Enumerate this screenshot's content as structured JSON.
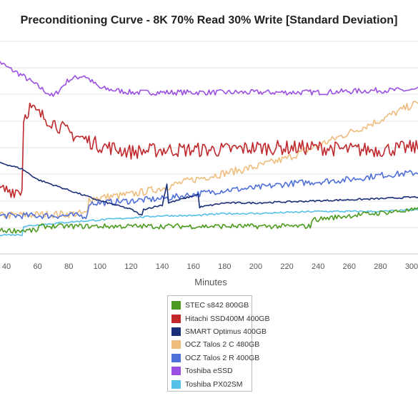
{
  "chart_data": {
    "type": "line",
    "title": "Preconditioning Curve - 8K 70% Read 30% Write [Standard Deviation]",
    "xlabel": "Minutes",
    "ylabel": "",
    "x_ticks": [
      40,
      60,
      80,
      100,
      120,
      140,
      160,
      180,
      200,
      220,
      240,
      260,
      280,
      300
    ],
    "xlim": [
      31,
      310
    ],
    "grid": true,
    "legend_position": "bottom-center",
    "series": [
      {
        "name": "STEC s842 800GB",
        "color": "#4c9a1f",
        "points": [
          [
            31,
            11
          ],
          [
            60,
            11
          ],
          [
            61,
            13
          ],
          [
            235,
            13
          ],
          [
            236,
            16
          ],
          [
            260,
            18
          ],
          [
            290,
            20
          ],
          [
            310,
            21
          ]
        ],
        "noise": 1.2
      },
      {
        "name": "Hitachi SSD400M 400GB",
        "color": "#c0282c",
        "points": [
          [
            31,
            30
          ],
          [
            50,
            30
          ],
          [
            51,
            64
          ],
          [
            55,
            69
          ],
          [
            60,
            66
          ],
          [
            70,
            62
          ],
          [
            80,
            57
          ],
          [
            90,
            54
          ],
          [
            100,
            51
          ],
          [
            120,
            48
          ],
          [
            140,
            49
          ],
          [
            160,
            49
          ],
          [
            180,
            49
          ],
          [
            200,
            50
          ],
          [
            220,
            50
          ],
          [
            240,
            50
          ],
          [
            260,
            49
          ],
          [
            280,
            49
          ],
          [
            300,
            50
          ],
          [
            310,
            50
          ]
        ],
        "noise": 3.5
      },
      {
        "name": "SMART Optimus 400GB",
        "color": "#1a2f78",
        "points": [
          [
            31,
            44
          ],
          [
            50,
            40
          ],
          [
            60,
            35
          ],
          [
            80,
            30
          ],
          [
            100,
            25
          ],
          [
            120,
            21
          ],
          [
            127,
            18
          ],
          [
            128,
            21
          ],
          [
            140,
            23
          ],
          [
            143,
            33
          ],
          [
            144,
            24
          ],
          [
            163,
            28
          ],
          [
            164,
            22
          ],
          [
            180,
            24
          ],
          [
            200,
            24
          ],
          [
            240,
            25
          ],
          [
            280,
            26
          ],
          [
            310,
            27
          ]
        ],
        "noise": 0.4
      },
      {
        "name": "OCZ Talos 2 C 480GB",
        "color": "#eebd7d",
        "points": [
          [
            31,
            18
          ],
          [
            92,
            19
          ],
          [
            93,
            26
          ],
          [
            120,
            28
          ],
          [
            140,
            31
          ],
          [
            160,
            35
          ],
          [
            180,
            38
          ],
          [
            200,
            41
          ],
          [
            220,
            45
          ],
          [
            240,
            51
          ],
          [
            260,
            57
          ],
          [
            280,
            63
          ],
          [
            300,
            70
          ],
          [
            310,
            72
          ]
        ],
        "noise": 1.8
      },
      {
        "name": "OCZ Talos 2 R 400GB",
        "color": "#4f6fd9",
        "points": [
          [
            31,
            18
          ],
          [
            92,
            18
          ],
          [
            93,
            24
          ],
          [
            100,
            24
          ],
          [
            120,
            25
          ],
          [
            140,
            26
          ],
          [
            160,
            28
          ],
          [
            180,
            30
          ],
          [
            200,
            31
          ],
          [
            220,
            33
          ],
          [
            240,
            34
          ],
          [
            260,
            35
          ],
          [
            280,
            37
          ],
          [
            300,
            38
          ],
          [
            310,
            39
          ]
        ],
        "noise": 1.5
      },
      {
        "name": "Toshiba eSSD",
        "color": "#9b4fe3",
        "points": [
          [
            31,
            93
          ],
          [
            40,
            88
          ],
          [
            50,
            84
          ],
          [
            60,
            79
          ],
          [
            70,
            74
          ],
          [
            80,
            82
          ],
          [
            90,
            84
          ],
          [
            100,
            78
          ],
          [
            120,
            76
          ],
          [
            140,
            76
          ],
          [
            160,
            76
          ],
          [
            180,
            76
          ],
          [
            200,
            76
          ],
          [
            240,
            76
          ],
          [
            280,
            77
          ],
          [
            300,
            77
          ],
          [
            310,
            78
          ]
        ],
        "noise": 1.3
      },
      {
        "name": "Toshiba PX02SM",
        "color": "#56c0e8",
        "points": [
          [
            31,
            9
          ],
          [
            50,
            9
          ],
          [
            51,
            13
          ],
          [
            80,
            15
          ],
          [
            100,
            16
          ],
          [
            120,
            17
          ],
          [
            140,
            18
          ],
          [
            160,
            18
          ],
          [
            180,
            19
          ],
          [
            200,
            19
          ],
          [
            240,
            20
          ],
          [
            280,
            20
          ],
          [
            310,
            21
          ]
        ],
        "noise": 0.4
      }
    ]
  }
}
